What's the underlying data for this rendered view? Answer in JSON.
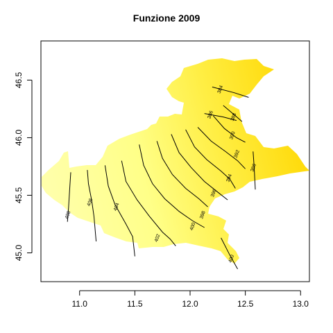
{
  "chart_data": {
    "type": "contour-map",
    "title": "Funzione 2009",
    "xlabel": "",
    "ylabel": "",
    "xlim": [
      10.65,
      13.08
    ],
    "ylim": [
      44.75,
      46.84
    ],
    "x_ticks": [
      "11.0",
      "11.5",
      "12.0",
      "12.5",
      "13.0"
    ],
    "y_ticks": [
      "45.0",
      "45.5",
      "46.0",
      "46.5"
    ],
    "x_tick_values": [
      11.0,
      11.5,
      12.0,
      12.5,
      13.0
    ],
    "y_tick_values": [
      45.0,
      45.5,
      46.0,
      46.5
    ],
    "grid": false,
    "fill_colors": {
      "low": "#ffff99",
      "mid": "#ffee44",
      "high": "#ffd700"
    },
    "contour_labels": [
      "384",
      "386",
      "388",
      "390",
      "392",
      "394",
      "396",
      "398",
      "400",
      "402",
      "404",
      "406",
      "408",
      "386",
      "400"
    ],
    "contours": [
      {
        "label": "408",
        "points": [
          [
            10.92,
            45.7
          ],
          [
            10.91,
            45.55
          ],
          [
            10.9,
            45.39
          ],
          [
            10.89,
            45.27
          ]
        ],
        "label_at": [
          10.89,
          45.33
        ]
      },
      {
        "label": "406",
        "points": [
          [
            11.07,
            45.72
          ],
          [
            11.08,
            45.6
          ],
          [
            11.11,
            45.45
          ],
          [
            11.13,
            45.32
          ],
          [
            11.15,
            45.1
          ]
        ],
        "label_at": [
          11.09,
          45.44
        ]
      },
      {
        "label": "404",
        "points": [
          [
            11.23,
            45.76
          ],
          [
            11.26,
            45.58
          ],
          [
            11.32,
            45.42
          ],
          [
            11.42,
            45.25
          ],
          [
            11.48,
            45.14
          ],
          [
            11.5,
            44.97
          ]
        ],
        "label_at": [
          11.33,
          45.4
        ]
      },
      {
        "label": "402",
        "points": [
          [
            11.38,
            45.8
          ],
          [
            11.42,
            45.62
          ],
          [
            11.52,
            45.46
          ],
          [
            11.63,
            45.32
          ],
          [
            11.75,
            45.18
          ],
          [
            11.82,
            45.12
          ],
          [
            11.87,
            45.06
          ]
        ],
        "label_at": [
          11.7,
          45.13
        ]
      },
      {
        "label": "400",
        "points": [
          [
            11.54,
            45.94
          ],
          [
            11.58,
            45.76
          ],
          [
            11.66,
            45.6
          ],
          [
            11.77,
            45.47
          ],
          [
            11.9,
            45.36
          ],
          [
            12.02,
            45.28
          ],
          [
            12.13,
            45.22
          ]
        ],
        "label_at": [
          12.02,
          45.23
        ]
      },
      {
        "label": "398",
        "points": [
          [
            11.7,
            45.97
          ],
          [
            11.75,
            45.82
          ],
          [
            11.84,
            45.68
          ],
          [
            11.96,
            45.56
          ],
          [
            12.08,
            45.47
          ],
          [
            12.16,
            45.4
          ]
        ],
        "label_at": [
          12.11,
          45.33
        ]
      },
      {
        "label": "396",
        "points": [
          [
            11.83,
            46.03
          ],
          [
            11.9,
            45.87
          ],
          [
            12.01,
            45.74
          ],
          [
            12.13,
            45.62
          ],
          [
            12.26,
            45.52
          ],
          [
            12.34,
            45.46
          ]
        ],
        "label_at": [
          12.21,
          45.52
        ]
      },
      {
        "label": "394",
        "points": [
          [
            11.96,
            46.07
          ],
          [
            12.04,
            45.92
          ],
          [
            12.15,
            45.81
          ],
          [
            12.28,
            45.71
          ],
          [
            12.36,
            45.64
          ],
          [
            12.41,
            45.56
          ]
        ],
        "label_at": [
          12.35,
          45.65
        ]
      },
      {
        "label": "392",
        "points": [
          [
            12.07,
            46.09
          ],
          [
            12.19,
            45.97
          ],
          [
            12.32,
            45.88
          ],
          [
            12.43,
            45.8
          ],
          [
            12.5,
            45.73
          ]
        ],
        "label_at": [
          12.42,
          45.86
        ]
      },
      {
        "label": "390",
        "points": [
          [
            12.21,
            46.19
          ],
          [
            12.31,
            46.08
          ],
          [
            12.42,
            46.0
          ],
          [
            12.5,
            45.96
          ]
        ],
        "label_at": [
          12.38,
          46.02
        ]
      },
      {
        "label": "388",
        "points": [
          [
            12.3,
            46.28
          ],
          [
            12.41,
            46.19
          ],
          [
            12.47,
            46.14
          ]
        ],
        "label_at": [
          12.39,
          46.18
        ]
      },
      {
        "label": "386",
        "points": [
          [
            12.57,
            45.88
          ],
          [
            12.58,
            45.74
          ],
          [
            12.59,
            45.55
          ]
        ],
        "label_at": [
          12.57,
          45.74
        ]
      },
      {
        "label": "386",
        "points": [
          [
            12.13,
            46.21
          ],
          [
            12.3,
            46.18
          ],
          [
            12.42,
            46.15
          ]
        ],
        "label_at": [
          12.18,
          46.2
        ]
      },
      {
        "label": "384",
        "points": [
          [
            12.2,
            46.44
          ],
          [
            12.4,
            46.39
          ],
          [
            12.53,
            46.35
          ]
        ],
        "label_at": [
          12.27,
          46.42
        ]
      },
      {
        "label": "400",
        "points": [
          [
            12.28,
            45.13
          ],
          [
            12.36,
            44.98
          ],
          [
            12.43,
            44.86
          ]
        ],
        "label_at": [
          12.37,
          44.95
        ]
      }
    ]
  }
}
